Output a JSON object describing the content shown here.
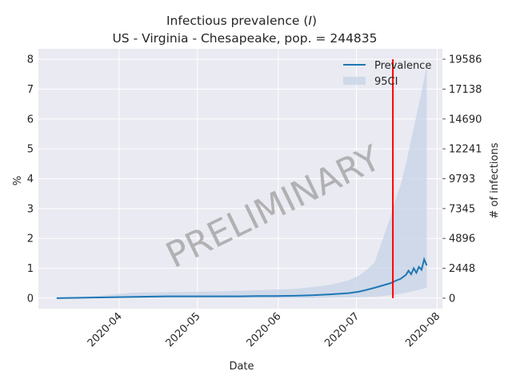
{
  "chart_data": {
    "type": "line",
    "title_line1": "Infectious prevalence (",
    "title_var": "I",
    "title_line1_end": ")",
    "title_line2": "US - Virginia - Chesapeake, pop. = 244835",
    "xlabel": "Date",
    "ylabel": "%",
    "ylabel_right": "# of infections",
    "ylim": [
      -0.35,
      8.35
    ],
    "yticks": [
      0,
      1,
      2,
      3,
      4,
      5,
      6,
      7,
      8
    ],
    "yticks_right": [
      "0",
      "2448",
      "4896",
      "7345",
      "9793",
      "12241",
      "14690",
      "17138",
      "19586"
    ],
    "xlim": [
      "2020-03-01",
      "2020-08-03"
    ],
    "xticks": [
      "2020-04",
      "2020-05",
      "2020-06",
      "2020-07",
      "2020-08"
    ],
    "xtick_dates": [
      "2020-04-01",
      "2020-05-01",
      "2020-06-01",
      "2020-07-01",
      "2020-08-01"
    ],
    "legend": {
      "position": "upper-right",
      "line_label": "Prevalence",
      "band_label": "95CI"
    },
    "vertical_line": {
      "date": "2020-07-15",
      "color": "#ff0000"
    },
    "watermark": "PRELIMINARY",
    "grid": true,
    "colors": {
      "line": "#1f77b4",
      "band": "#c5d3e6",
      "plot_bg": "#eaeaf2"
    },
    "series": [
      {
        "name": "Prevalence",
        "x": [
          "2020-03-08",
          "2020-03-15",
          "2020-03-22",
          "2020-03-29",
          "2020-04-05",
          "2020-04-12",
          "2020-04-19",
          "2020-04-26",
          "2020-05-03",
          "2020-05-10",
          "2020-05-17",
          "2020-05-24",
          "2020-05-31",
          "2020-06-07",
          "2020-06-14",
          "2020-06-21",
          "2020-06-28",
          "2020-07-02",
          "2020-07-05",
          "2020-07-08",
          "2020-07-10",
          "2020-07-12",
          "2020-07-14",
          "2020-07-16",
          "2020-07-18",
          "2020-07-20",
          "2020-07-21",
          "2020-07-22",
          "2020-07-23",
          "2020-07-24",
          "2020-07-25",
          "2020-07-26",
          "2020-07-27",
          "2020-07-28"
        ],
        "values": [
          0.0,
          0.01,
          0.02,
          0.03,
          0.04,
          0.05,
          0.06,
          0.06,
          0.06,
          0.06,
          0.06,
          0.07,
          0.07,
          0.08,
          0.1,
          0.13,
          0.17,
          0.22,
          0.28,
          0.35,
          0.4,
          0.45,
          0.5,
          0.58,
          0.65,
          0.78,
          0.92,
          0.8,
          1.0,
          0.85,
          1.05,
          0.95,
          1.3,
          1.1
        ]
      }
    ],
    "band": {
      "name": "95CI",
      "x": [
        "2020-03-08",
        "2020-03-15",
        "2020-03-22",
        "2020-03-29",
        "2020-04-05",
        "2020-04-12",
        "2020-04-19",
        "2020-04-26",
        "2020-05-03",
        "2020-05-10",
        "2020-05-17",
        "2020-05-24",
        "2020-05-31",
        "2020-06-07",
        "2020-06-14",
        "2020-06-21",
        "2020-06-28",
        "2020-07-02",
        "2020-07-05",
        "2020-07-08",
        "2020-07-10",
        "2020-07-12",
        "2020-07-14",
        "2020-07-16",
        "2020-07-18",
        "2020-07-20",
        "2020-07-22",
        "2020-07-24",
        "2020-07-26",
        "2020-07-28"
      ],
      "upper": [
        0.0,
        0.02,
        0.06,
        0.12,
        0.18,
        0.2,
        0.2,
        0.21,
        0.22,
        0.23,
        0.25,
        0.27,
        0.29,
        0.31,
        0.37,
        0.45,
        0.6,
        0.75,
        0.95,
        1.2,
        1.7,
        2.2,
        2.7,
        3.3,
        3.8,
        4.5,
        5.3,
        6.1,
        6.9,
        7.8
      ],
      "lower": [
        0.0,
        0.0,
        0.0,
        0.0,
        0.0,
        0.0,
        0.0,
        0.0,
        0.0,
        0.0,
        0.0,
        0.0,
        0.0,
        0.0,
        0.0,
        0.01,
        0.02,
        0.03,
        0.04,
        0.05,
        0.06,
        0.08,
        0.1,
        0.12,
        0.15,
        0.18,
        0.22,
        0.26,
        0.3,
        0.35
      ]
    }
  }
}
